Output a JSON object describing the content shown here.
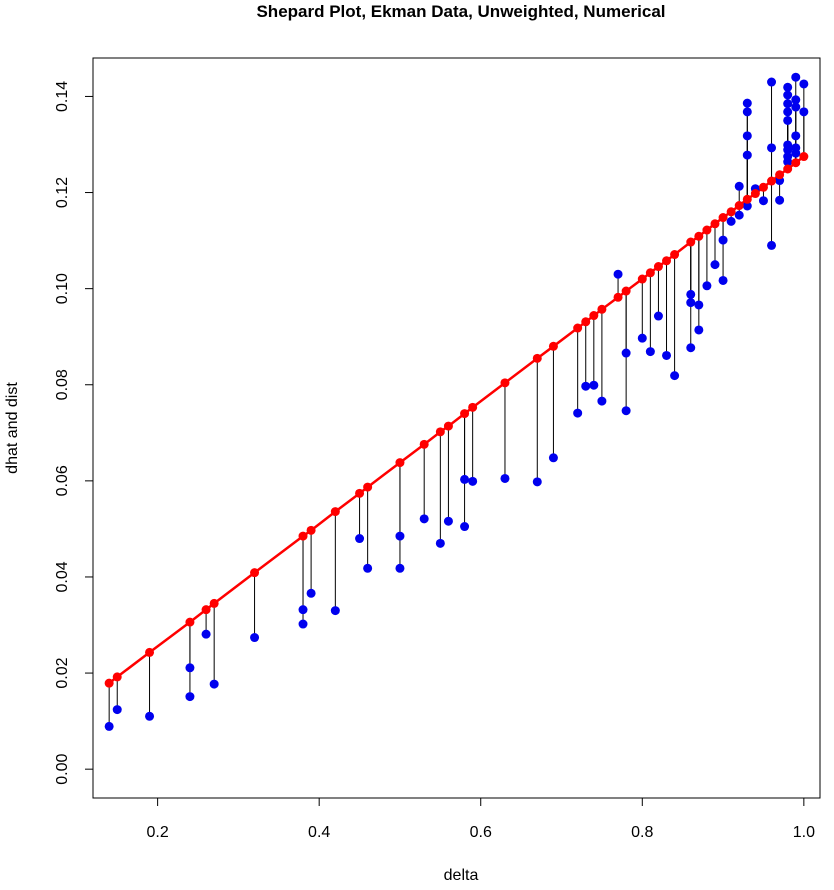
{
  "chart_data": {
    "type": "scatter",
    "title": "Shepard Plot, Ekman Data, Unweighted, Numerical",
    "xlabel": "delta",
    "ylabel": "dhat and dist",
    "xlim": [
      0.12,
      1.02
    ],
    "ylim": [
      -0.006,
      0.148
    ],
    "xticks": [
      "0.2",
      "0.4",
      "0.6",
      "0.8",
      "1.0"
    ],
    "yticks": [
      "0.00",
      "0.02",
      "0.04",
      "0.06",
      "0.08",
      "0.10",
      "0.12",
      "0.14"
    ],
    "grid": false,
    "colors": {
      "dhat": "#ff0000",
      "dist": "#0000ee",
      "segments": "#000000"
    },
    "series": [
      {
        "role": "dhat",
        "x": [
          0.14,
          0.15,
          0.19,
          0.24,
          0.26,
          0.27,
          0.32,
          0.38,
          0.39,
          0.42,
          0.45,
          0.46,
          0.5,
          0.53,
          0.55,
          0.56,
          0.58,
          0.59,
          0.63,
          0.67,
          0.69,
          0.72,
          0.73,
          0.74,
          0.75,
          0.77,
          0.78,
          0.8,
          0.81,
          0.82,
          0.83,
          0.84,
          0.86,
          0.87,
          0.88,
          0.89,
          0.9,
          0.91,
          0.92,
          0.93,
          0.94,
          0.95,
          0.96,
          0.97,
          0.98,
          0.99,
          1.0
        ],
        "y": [
          0.0179,
          0.0192,
          0.0243,
          0.0306,
          0.0332,
          0.0345,
          0.0409,
          0.0485,
          0.0497,
          0.0536,
          0.0574,
          0.0587,
          0.0638,
          0.0676,
          0.0702,
          0.0714,
          0.074,
          0.0753,
          0.0804,
          0.0855,
          0.088,
          0.0918,
          0.0931,
          0.0944,
          0.0957,
          0.0982,
          0.0995,
          0.102,
          0.1033,
          0.1046,
          0.1058,
          0.1071,
          0.1097,
          0.1109,
          0.1122,
          0.1135,
          0.1148,
          0.116,
          0.1173,
          0.1186,
          0.1198,
          0.1211,
          0.1224,
          0.1237,
          0.1249,
          0.1262,
          0.1275
        ]
      },
      {
        "role": "dist",
        "x": [
          0.14,
          0.15,
          0.19,
          0.24,
          0.24,
          0.26,
          0.27,
          0.32,
          0.38,
          0.38,
          0.39,
          0.42,
          0.45,
          0.46,
          0.5,
          0.5,
          0.53,
          0.55,
          0.56,
          0.58,
          0.58,
          0.59,
          0.63,
          0.67,
          0.69,
          0.72,
          0.73,
          0.74,
          0.75,
          0.77,
          0.78,
          0.78,
          0.8,
          0.81,
          0.82,
          0.83,
          0.84,
          0.86,
          0.86,
          0.86,
          0.87,
          0.87,
          0.88,
          0.89,
          0.9,
          0.9,
          0.91,
          0.92,
          0.92,
          0.93,
          0.93,
          0.93,
          0.93,
          0.93,
          0.94,
          0.95,
          0.96,
          0.96,
          0.96,
          0.97,
          0.97,
          0.98,
          0.98,
          0.98,
          0.98,
          0.98,
          0.98,
          0.98,
          0.98,
          0.98,
          0.99,
          0.99,
          0.99,
          0.99,
          0.99,
          0.99,
          1.0,
          1.0
        ],
        "y": [
          0.0089,
          0.0124,
          0.011,
          0.0151,
          0.0211,
          0.0281,
          0.0177,
          0.0274,
          0.0302,
          0.0332,
          0.0366,
          0.033,
          0.048,
          0.0418,
          0.0485,
          0.0418,
          0.0521,
          0.047,
          0.0516,
          0.0603,
          0.0505,
          0.0599,
          0.0605,
          0.0598,
          0.0648,
          0.0741,
          0.0797,
          0.0799,
          0.0766,
          0.103,
          0.0866,
          0.0746,
          0.0897,
          0.0869,
          0.0943,
          0.0861,
          0.0819,
          0.0988,
          0.0971,
          0.0877,
          0.0966,
          0.0914,
          0.1006,
          0.105,
          0.1101,
          0.1017,
          0.114,
          0.1213,
          0.1153,
          0.1386,
          0.1368,
          0.1318,
          0.1278,
          0.1172,
          0.1208,
          0.1183,
          0.143,
          0.1293,
          0.109,
          0.1225,
          0.1184,
          0.1419,
          0.1403,
          0.1385,
          0.1368,
          0.135,
          0.1299,
          0.1289,
          0.1275,
          0.1264,
          0.144,
          0.1393,
          0.1378,
          0.1318,
          0.1293,
          0.1282,
          0.1426,
          0.1368
        ]
      }
    ]
  }
}
